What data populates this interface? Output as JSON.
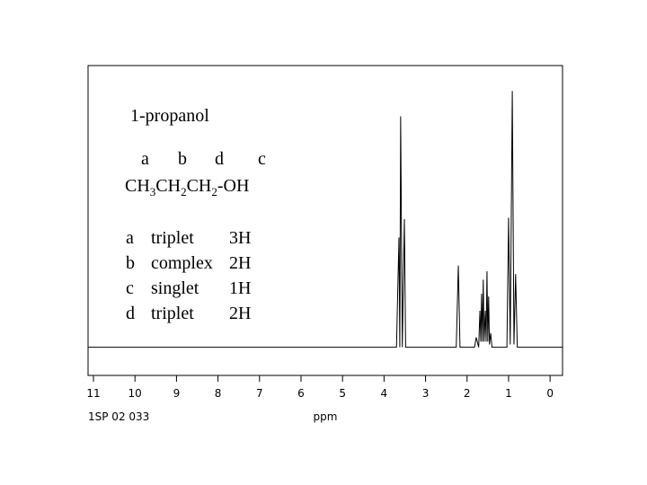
{
  "chart_data": {
    "type": "line",
    "title": "1-propanol",
    "labels": [
      "a",
      "b",
      "d",
      "c"
    ],
    "formula": [
      "CH",
      "3",
      "CH",
      "2",
      "CH",
      "2",
      "-OH"
    ],
    "assignments": [
      [
        "a",
        "triplet",
        "3H"
      ],
      [
        "b",
        "complex",
        "2H"
      ],
      [
        "c",
        "singlet",
        "1H"
      ],
      [
        "d",
        "triplet",
        "2H"
      ]
    ],
    "code": "1SP 02 033",
    "xlabel": "ppm",
    "xlim": [
      11.13,
      -0.3
    ],
    "ylim": [
      -10,
      100
    ],
    "xticks": [
      11,
      10,
      9,
      8,
      7,
      6,
      5,
      4,
      3,
      2,
      1,
      0
    ],
    "color": "#000000",
    "x": [
      11.13,
      3.7,
      3.64,
      3.62,
      3.6,
      3.56,
      3.51,
      3.48,
      2.26,
      2.21,
      2.17,
      1.82,
      1.78,
      1.72,
      1.69,
      1.67,
      1.65,
      1.63,
      1.61,
      1.59,
      1.56,
      1.54,
      1.52,
      1.5,
      1.48,
      1.46,
      1.43,
      1.4,
      1.04,
      1.0,
      0.96,
      0.91,
      0.87,
      0.83,
      0.79,
      -0.3
    ],
    "values": [
      0,
      0,
      39,
      0,
      82,
      0,
      45.5,
      0,
      0,
      29,
      0,
      0,
      3.5,
      0,
      13,
      2,
      19,
      2,
      24,
      2,
      13,
      2,
      27,
      2,
      18,
      1,
      5,
      0,
      0,
      46,
      1,
      91,
      1,
      26,
      0,
      0
    ]
  }
}
